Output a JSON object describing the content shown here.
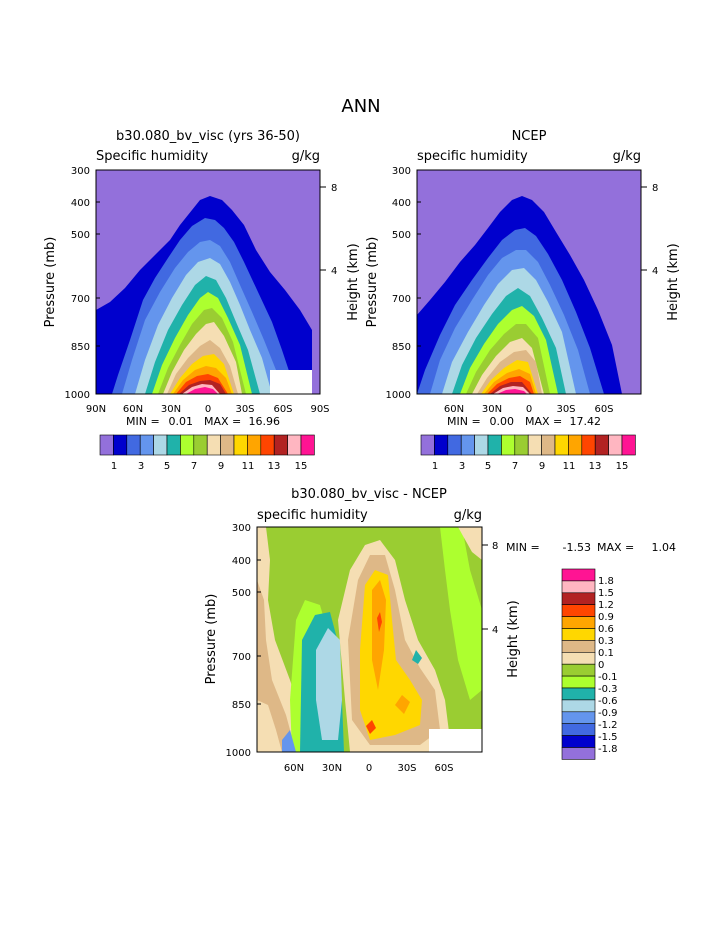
{
  "page_title": "ANN",
  "chart_data": [
    {
      "type": "contour",
      "title": "b30.080_bv_visc (yrs 36-50)",
      "subtitle_left": "Specific humidity",
      "subtitle_right": "g/kg",
      "ylabel": "Pressure (mb)",
      "ylabel_right": "Height (km)",
      "y_ticks": [
        "300",
        "400",
        "500",
        "700",
        "850",
        "1000"
      ],
      "y_ticks_right": [
        "8",
        "4"
      ],
      "x_ticks": [
        "90N",
        "60N",
        "30N",
        "0",
        "30S",
        "60S",
        "90S"
      ],
      "min_label": "MIN =",
      "min_value": "0.01",
      "max_label": "MAX =",
      "max_value": "16.96",
      "colorbar_labels": [
        "1",
        "3",
        "5",
        "7",
        "9",
        "11",
        "13",
        "15"
      ]
    },
    {
      "type": "contour",
      "title": "NCEP",
      "subtitle_left": "specific humidity",
      "subtitle_right": "g/kg",
      "ylabel": "Pressure (mb)",
      "ylabel_right": "Height (km)",
      "y_ticks": [
        "300",
        "400",
        "500",
        "700",
        "850",
        "1000"
      ],
      "y_ticks_right": [
        "8",
        "4"
      ],
      "x_ticks": [
        "60N",
        "30N",
        "0",
        "30S",
        "60S"
      ],
      "min_label": "MIN =",
      "min_value": "0.00",
      "max_label": "MAX =",
      "max_value": "17.42",
      "colorbar_labels": [
        "1",
        "3",
        "5",
        "7",
        "9",
        "11",
        "13",
        "15"
      ]
    },
    {
      "type": "contour",
      "title": "b30.080_bv_visc - NCEP",
      "subtitle_left": "specific humidity",
      "subtitle_right": "g/kg",
      "ylabel": "Pressure (mb)",
      "ylabel_right": "Height (km)",
      "y_ticks": [
        "300",
        "400",
        "500",
        "700",
        "850",
        "1000"
      ],
      "y_ticks_right": [
        "8",
        "4"
      ],
      "x_ticks": [
        "60N",
        "30N",
        "0",
        "30S",
        "60S"
      ],
      "min_label": "MIN =",
      "min_value": "-1.53",
      "max_label": "MAX =",
      "max_value": "1.04",
      "colorbar_labels": [
        "1.8",
        "1.5",
        "1.2",
        "0.9",
        "0.6",
        "0.3",
        "0.1",
        "0",
        "-0.1",
        "-0.3",
        "-0.6",
        "-0.9",
        "-1.2",
        "-1.5",
        "-1.8"
      ]
    }
  ],
  "colors": {
    "abs_palette": [
      "#9370DB",
      "#0000CD",
      "#4169E1",
      "#6495ED",
      "#ADD8E6",
      "#20B2AA",
      "#ADFF2F",
      "#9ACD32",
      "#F5DEB3",
      "#DEB887",
      "#FFD700",
      "#FFA500",
      "#FF4500",
      "#B22222",
      "#FFB6C1",
      "#FF1493"
    ],
    "diff_palette": [
      "#FF1493",
      "#FFB6C1",
      "#B22222",
      "#FF4500",
      "#FFA500",
      "#FFD700",
      "#DEB887",
      "#F5DEB3",
      "#9ACD32",
      "#ADFF2F",
      "#20B2AA",
      "#ADD8E6",
      "#6495ED",
      "#4169E1",
      "#0000CD",
      "#9370DB"
    ]
  }
}
